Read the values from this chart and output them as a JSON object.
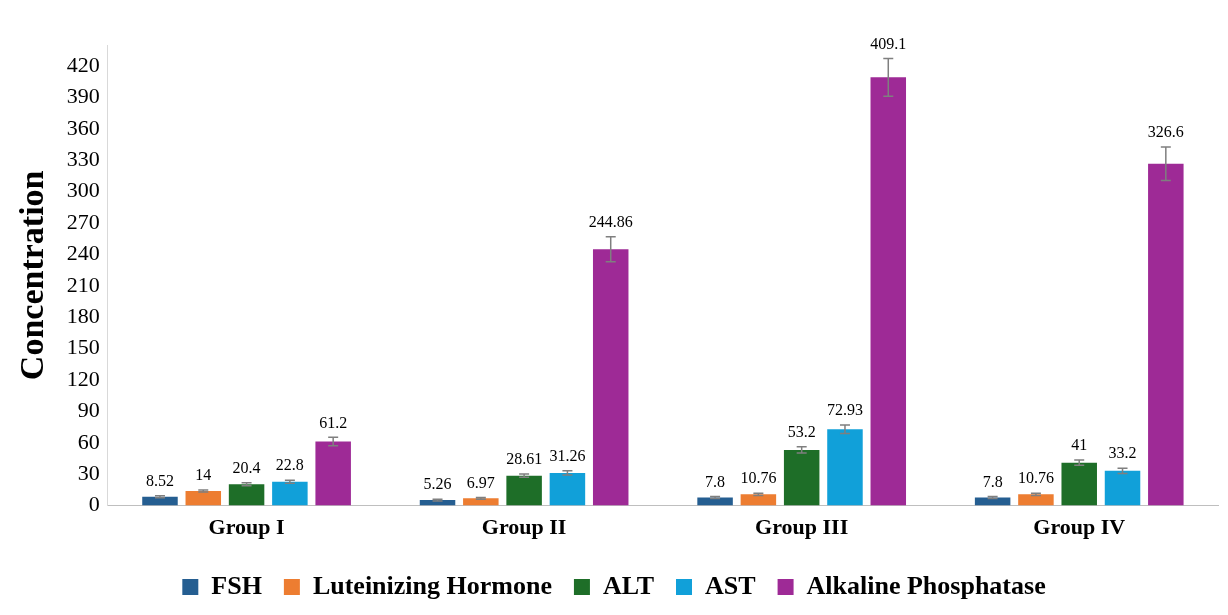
{
  "chart_data": {
    "type": "bar",
    "ylabel": "Concentration",
    "categories": [
      "Group I",
      "Group II",
      "Group III",
      "Group IV"
    ],
    "series": [
      {
        "name": "FSH",
        "color": "#255e91",
        "values": [
          8.52,
          5.26,
          7.8,
          7.8
        ],
        "errors": [
          1,
          0.8,
          1,
          1
        ]
      },
      {
        "name": "Luteinizing Hormone",
        "color": "#ed7d31",
        "values": [
          14,
          6.97,
          10.76,
          10.76
        ],
        "errors": [
          1,
          0.8,
          1,
          1
        ]
      },
      {
        "name": "ALT",
        "color": "#1e6e28",
        "values": [
          20.4,
          28.61,
          53.2,
          41
        ],
        "errors": [
          1.5,
          1.5,
          3,
          2.5
        ]
      },
      {
        "name": "AST",
        "color": "#11a0d9",
        "values": [
          22.8,
          31.26,
          72.93,
          33.2
        ],
        "errors": [
          1.5,
          2,
          4,
          2.5
        ]
      },
      {
        "name": "Alkaline Phosphatase",
        "color": "#9e2a96",
        "values": [
          61.2,
          244.86,
          409.1,
          326.6
        ],
        "errors": [
          4,
          12,
          18,
          16
        ]
      }
    ],
    "ylim": [
      0,
      440
    ],
    "yticks": [
      0,
      30,
      60,
      90,
      120,
      150,
      180,
      210,
      240,
      270,
      300,
      330,
      360,
      390,
      420
    ],
    "grid": false,
    "legend": "bottom",
    "data_labels": true
  }
}
